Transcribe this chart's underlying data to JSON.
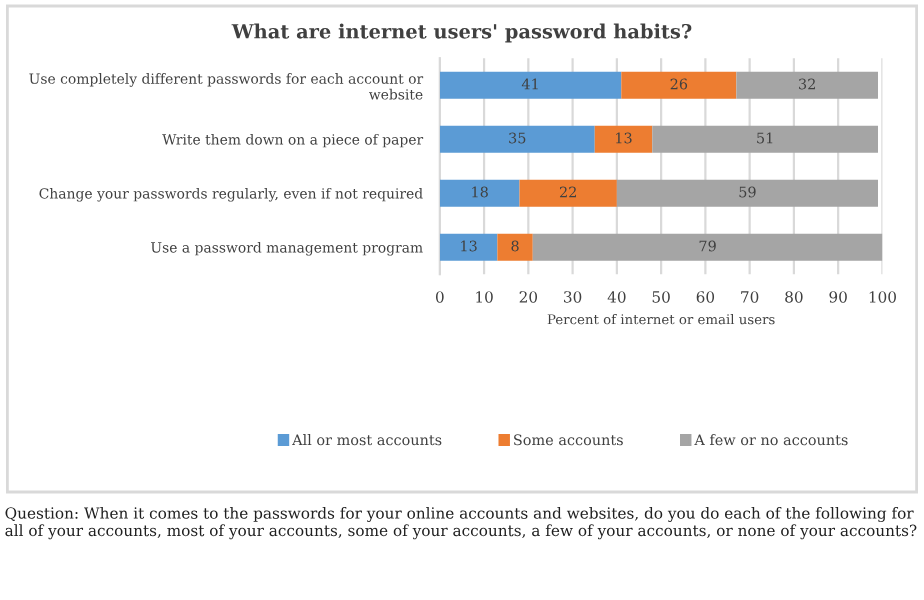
{
  "chart_data": {
    "type": "bar",
    "orientation": "horizontal",
    "stacked": true,
    "title": "What are internet users' password habits?",
    "categories": [
      "Use completely different passwords for each account or\nwebsite",
      "Write them down on a piece of paper",
      "Change your passwords regularly, even if not required",
      "Use a password management program"
    ],
    "series": [
      {
        "name": "All or most accounts",
        "color": "#5b9bd5",
        "values": [
          41,
          35,
          18,
          13
        ]
      },
      {
        "name": "Some accounts",
        "color": "#ed7d31",
        "values": [
          26,
          13,
          22,
          8
        ]
      },
      {
        "name": "A few or no accounts",
        "color": "#a5a5a5",
        "values": [
          32,
          51,
          59,
          79
        ]
      }
    ],
    "xlabel": "Percent of internet or email users",
    "xlim": [
      0,
      100
    ],
    "xticks": [
      0,
      10,
      20,
      30,
      40,
      50,
      60,
      70,
      80,
      90,
      100
    ],
    "grid": "x",
    "legend": "bottom",
    "data_labels": true,
    "annotations": [
      "Question: When it comes to the passwords for your online accounts and websites, do you do each of the following for all of your accounts, most of your accounts, some of your accounts, a few of your accounts, or none of your accounts?"
    ]
  }
}
